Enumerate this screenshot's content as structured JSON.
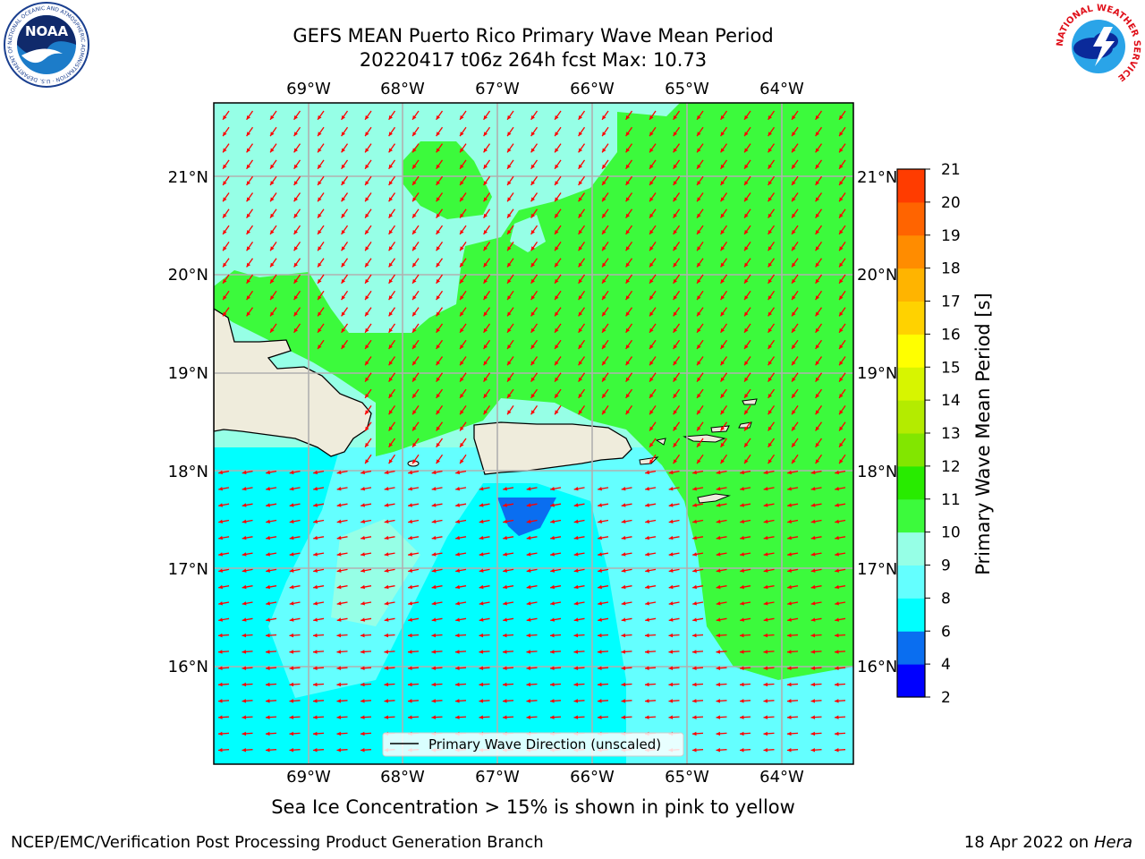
{
  "header": {
    "title_line1": "GEFS MEAN Puerto Rico Primary Wave Mean Period",
    "title_line2": "20220417 t06z 264h fcst   Max: 10.73"
  },
  "logos": {
    "left": "NOAA",
    "left_ring_text": "NATIONAL OCEANIC AND ATMOSPHERIC ADMINISTRATION · U.S. DEPARTMENT OF COMMERCE",
    "right_ring_text": "NATIONAL WEATHER SERVICE"
  },
  "map": {
    "lon_labels": [
      "69°W",
      "68°W",
      "67°W",
      "66°W",
      "65°W",
      "64°W"
    ],
    "lat_labels": [
      "21°N",
      "20°N",
      "19°N",
      "18°N",
      "17°N",
      "16°N"
    ],
    "legend_label": "Primary Wave Direction (unscaled)",
    "arrow_color": "#ff0000",
    "land_color": "#efecdc"
  },
  "colorbar": {
    "label": "Primary Wave Mean Period [s]",
    "ticks": [
      "2",
      "4",
      "6",
      "8",
      "9",
      "10",
      "11",
      "12",
      "13",
      "14",
      "15",
      "16",
      "17",
      "18",
      "19",
      "20",
      "21"
    ],
    "colors": [
      "#0000ff",
      "#0a6ef0",
      "#00ffff",
      "#64ffff",
      "#96ffe6",
      "#3cfa3c",
      "#28eb00",
      "#82e600",
      "#b4eb00",
      "#d7f500",
      "#ffff00",
      "#ffd200",
      "#ffb400",
      "#ff8c00",
      "#ff6400",
      "#ff3c00",
      "#ff0000"
    ]
  },
  "footer": {
    "ice_note": "Sea Ice Concentration > 15% is shown in pink to yellow",
    "left": "NCEP/EMC/Verification Post Processing Product Generation Branch",
    "right_prefix": "18 Apr 2022 on ",
    "right_machine": "Hera"
  }
}
